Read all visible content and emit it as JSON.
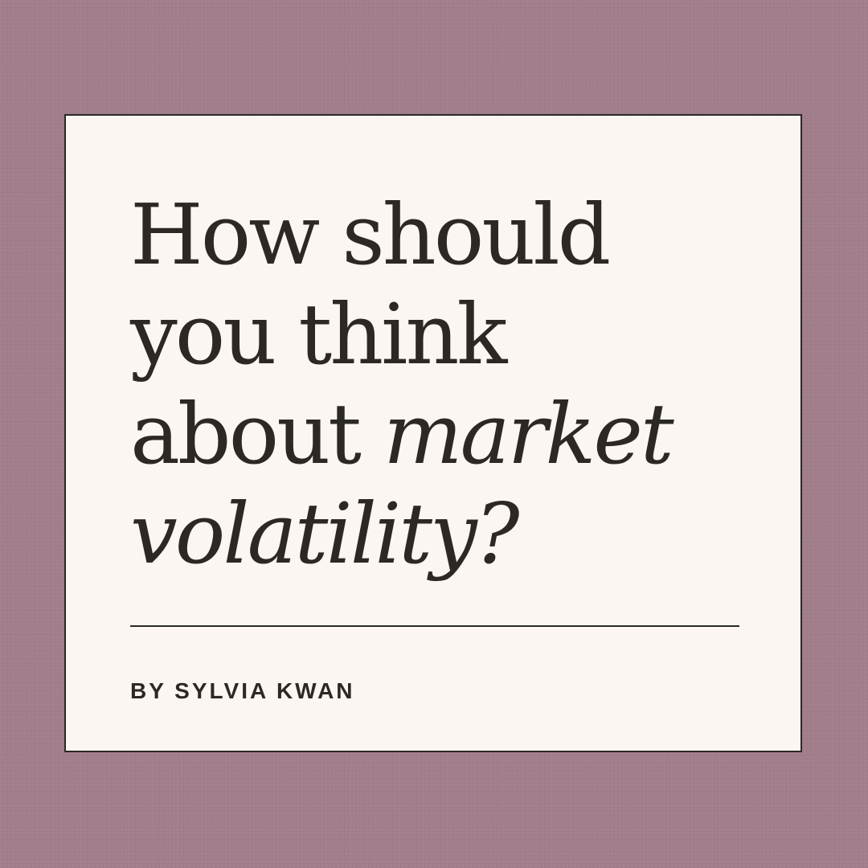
{
  "colors": {
    "background": "#a07c8a",
    "card": "#fcf6f2",
    "text": "#2b2826"
  },
  "headline": {
    "line1": "How should",
    "line2": "you think",
    "line3_plain": "about ",
    "line3_italic": "market",
    "line4_italic": "volatility?"
  },
  "byline": "BY SYLVIA KWAN"
}
